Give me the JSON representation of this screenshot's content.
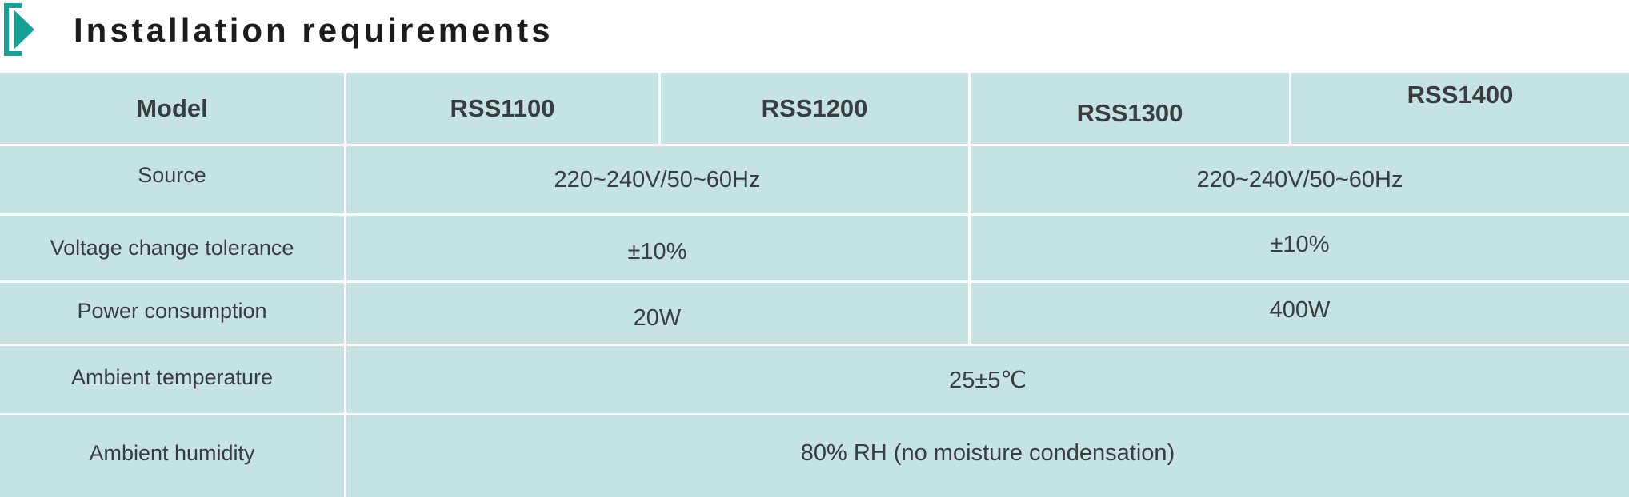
{
  "title": "Installation requirements",
  "accent": "#14a296",
  "table": {
    "headers": [
      "Model",
      "RSS1100",
      "RSS1200",
      "RSS1300",
      "RSS1400"
    ],
    "rows": [
      {
        "label": "Source",
        "left": "220~240V/50~60Hz",
        "right": "220~240V/50~60Hz"
      },
      {
        "label": "Voltage change tolerance",
        "left": "±10%",
        "right": "±10%"
      },
      {
        "label": "Power consumption",
        "left": "20W",
        "right": "400W"
      },
      {
        "label": "Ambient temperature",
        "all": "25±5℃"
      },
      {
        "label": "Ambient humidity",
        "all": "80% RH (no moisture condensation)"
      }
    ]
  }
}
